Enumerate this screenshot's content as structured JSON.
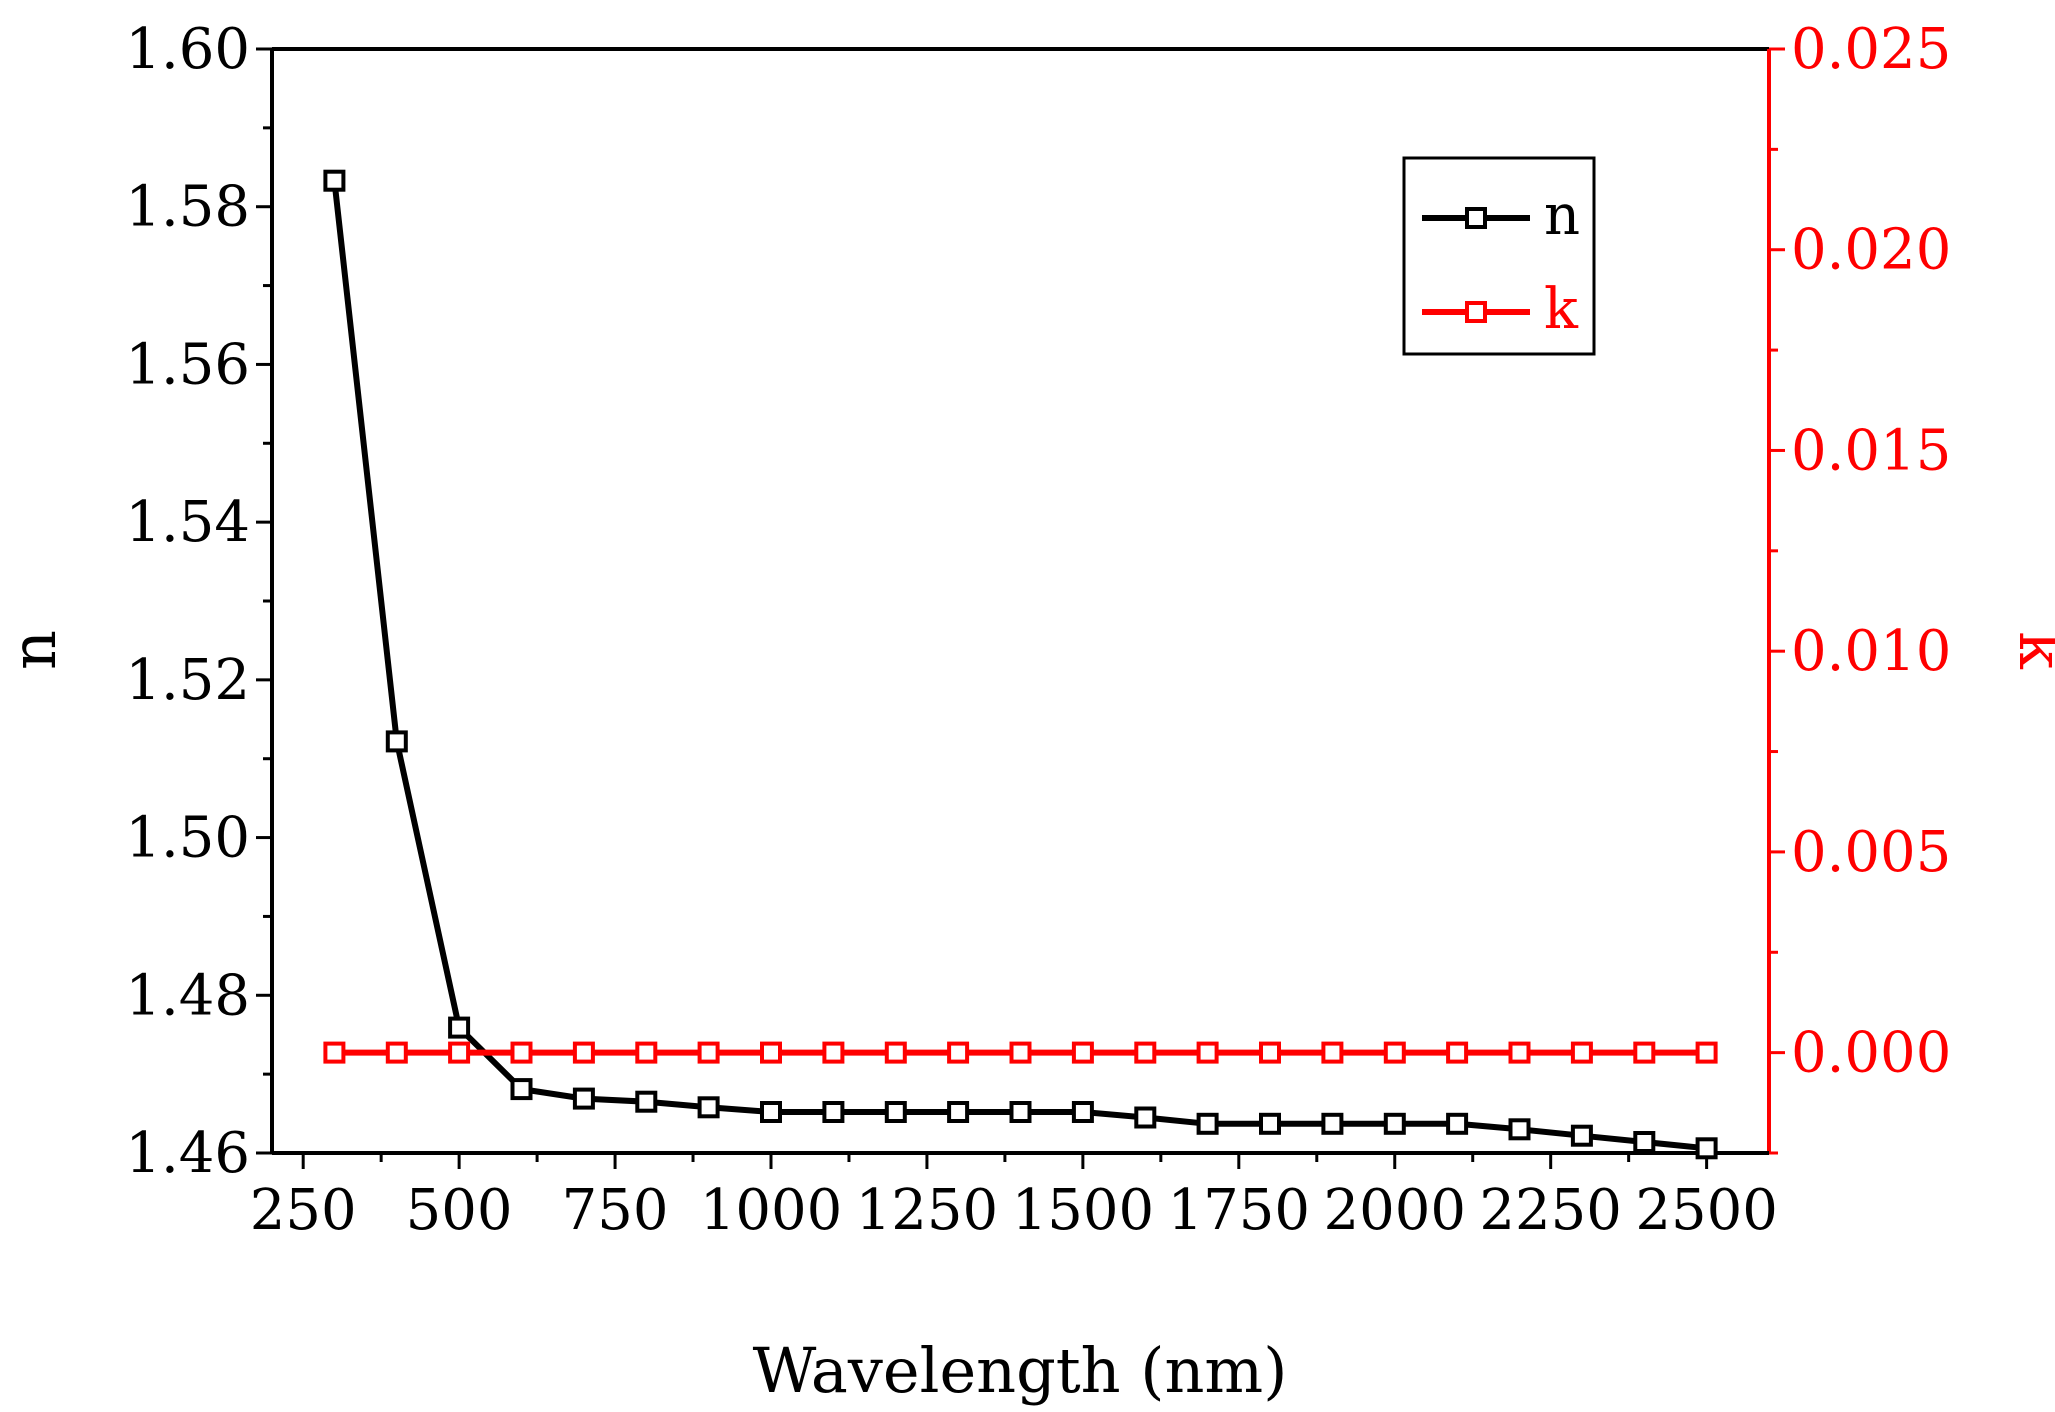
{
  "chart_data": {
    "type": "line",
    "title": "",
    "xlabel": "Wavelength (nm)",
    "ylabel": "n",
    "y2label": "k",
    "xlim": [
      200,
      2600
    ],
    "ylim": [
      1.46,
      1.6
    ],
    "y2lim": [
      -0.0025,
      0.025
    ],
    "xticks": [
      "250",
      "500",
      "750",
      "1000",
      "1250",
      "1500",
      "1750",
      "2000",
      "2250",
      "2500"
    ],
    "yticks": [
      "1.46",
      "1.48",
      "1.50",
      "1.52",
      "1.54",
      "1.56",
      "1.58",
      "1.60"
    ],
    "y2ticks": [
      "0.000",
      "0.005",
      "0.010",
      "0.015",
      "0.020",
      "0.025"
    ],
    "legend_position": "top-right",
    "grid": false,
    "x": [
      300,
      400,
      500,
      600,
      700,
      800,
      900,
      1000,
      1100,
      1200,
      1300,
      1400,
      1500,
      1600,
      1700,
      1800,
      1900,
      2000,
      2100,
      2200,
      2300,
      2400,
      2500
    ],
    "series": [
      {
        "name": "n",
        "axis": "left",
        "color": "#000000",
        "marker": "open-square",
        "values": [
          1.5833,
          1.5122,
          1.4759,
          1.4681,
          1.4669,
          1.4665,
          1.4658,
          1.4652,
          1.4652,
          1.4652,
          1.4652,
          1.4652,
          1.4652,
          1.4645,
          1.4637,
          1.4637,
          1.4637,
          1.4637,
          1.4637,
          1.463,
          1.4622,
          1.4614,
          1.4606
        ]
      },
      {
        "name": "k",
        "axis": "right",
        "color": "#ff0000",
        "marker": "open-square",
        "values": [
          0,
          0,
          0,
          0,
          0,
          0,
          0,
          0,
          0,
          0,
          0,
          0,
          0,
          0,
          0,
          0,
          0,
          0,
          0,
          0,
          0,
          0,
          0
        ]
      }
    ]
  }
}
